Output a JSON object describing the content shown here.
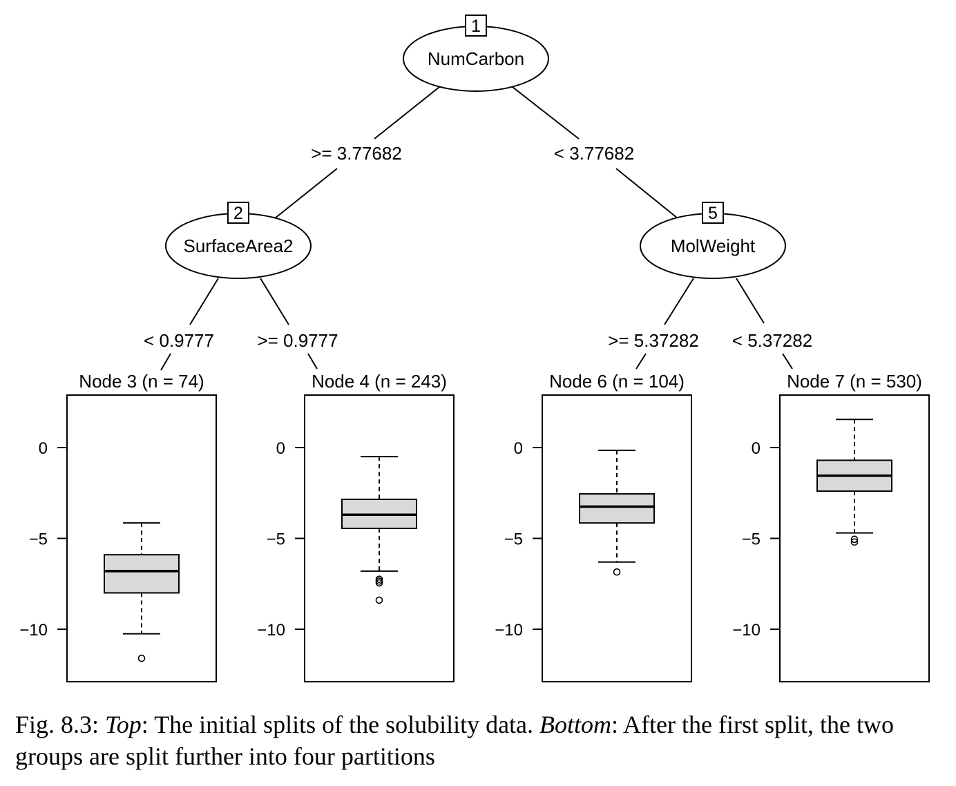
{
  "tree": {
    "nodes": [
      {
        "id": "1",
        "variable": "NumCarbon"
      },
      {
        "id": "2",
        "variable": "SurfaceArea2"
      },
      {
        "id": "5",
        "variable": "MolWeight"
      }
    ],
    "edges": [
      {
        "from": "1",
        "to": "2",
        "label": ">= 3.77682"
      },
      {
        "from": "1",
        "to": "5",
        "label": "< 3.77682"
      },
      {
        "from": "2",
        "to": "3",
        "label": "< 0.9777"
      },
      {
        "from": "2",
        "to": "4",
        "label": ">= 0.9777"
      },
      {
        "from": "5",
        "to": "6",
        "label": ">= 5.37282"
      },
      {
        "from": "5",
        "to": "7",
        "label": "< 5.37282"
      }
    ]
  },
  "chart_data": {
    "type": "boxplot",
    "y_ticks": [
      0,
      -5,
      -10
    ],
    "y_tick_labels": [
      "0",
      "−5",
      "−10"
    ],
    "ylim": [
      -12.9,
      2.9
    ],
    "panels": [
      {
        "title": "Node 3 (n = 74)",
        "q1": -8.0,
        "median": -6.8,
        "q3": -5.9,
        "whisker_low": -10.25,
        "whisker_high": -4.15,
        "outliers": [
          -11.6
        ]
      },
      {
        "title": "Node 4 (n = 243)",
        "q1": -4.45,
        "median": -3.7,
        "q3": -2.85,
        "whisker_low": -6.8,
        "whisker_high": -0.5,
        "outliers": [
          -7.25,
          -7.35,
          -7.45,
          -8.4
        ]
      },
      {
        "title": "Node 6 (n = 104)",
        "q1": -4.15,
        "median": -3.25,
        "q3": -2.55,
        "whisker_low": -6.3,
        "whisker_high": -0.15,
        "outliers": [
          -6.85
        ]
      },
      {
        "title": "Node 7 (n = 530)",
        "q1": -2.4,
        "median": -1.55,
        "q3": -0.7,
        "whisker_low": -4.7,
        "whisker_high": 1.55,
        "outliers": [
          -5.05,
          -5.2
        ]
      }
    ]
  },
  "caption": {
    "prefix": "Fig. 8.3: ",
    "top_label": "Top",
    "top_text": ": The initial splits of the solubility data. ",
    "bottom_label": "Bottom",
    "bottom_text": ": After the first split, the two groups are split further into four partitions"
  }
}
